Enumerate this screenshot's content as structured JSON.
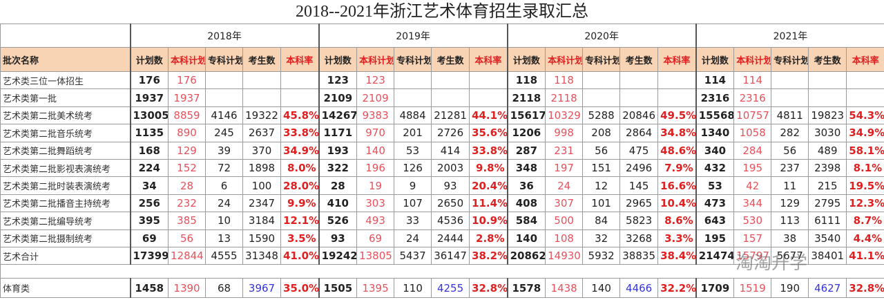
{
  "title": "2018--2021年浙江艺术体育招生录取汇总",
  "years": [
    "2018年",
    "2019年",
    "2020年",
    "2021年"
  ],
  "row_header": "批次名称",
  "columns": [
    "计划数",
    "本科计划",
    "专科计划",
    "考生数",
    "本科率"
  ],
  "rows": [
    {
      "name": "艺术类三位一体招生",
      "cells": [
        [
          176,
          176
        ],
        [
          123,
          123
        ],
        [
          118,
          118
        ],
        [
          114,
          114
        ]
      ]
    },
    {
      "name": "艺术类第一批",
      "cells": [
        [
          1937,
          1937
        ],
        [
          2109,
          2109
        ],
        [
          2118,
          2118
        ],
        [
          2316,
          2316
        ]
      ]
    },
    {
      "name": "艺术类第二批美术统考",
      "cells": [
        [
          13005,
          8859,
          4146,
          19322,
          "45.8%"
        ],
        [
          14267,
          9383,
          4884,
          21281,
          "44.1%"
        ],
        [
          15617,
          10329,
          5288,
          20846,
          "49.5%"
        ],
        [
          15568,
          10757,
          4811,
          19823,
          "54.3%"
        ]
      ]
    },
    {
      "name": "艺术类第二批音乐统考",
      "cells": [
        [
          1135,
          890,
          245,
          2637,
          "33.8%"
        ],
        [
          1171,
          970,
          201,
          2726,
          "35.6%"
        ],
        [
          1206,
          998,
          208,
          2864,
          "34.8%"
        ],
        [
          1340,
          1058,
          282,
          3030,
          "34.9%"
        ]
      ]
    },
    {
      "name": "艺术类第二批舞蹈统考",
      "cells": [
        [
          168,
          129,
          39,
          370,
          "34.9%"
        ],
        [
          193,
          140,
          53,
          414,
          "33.8%"
        ],
        [
          287,
          231,
          56,
          475,
          "48.6%"
        ],
        [
          340,
          284,
          56,
          489,
          "58.1%"
        ]
      ]
    },
    {
      "name": "艺术类第二批影视表演统考",
      "cells": [
        [
          224,
          152,
          72,
          1898,
          "8.0%"
        ],
        [
          322,
          196,
          126,
          2003,
          "9.8%"
        ],
        [
          348,
          197,
          151,
          2496,
          "7.9%"
        ],
        [
          432,
          195,
          237,
          2398,
          "8.1%"
        ]
      ]
    },
    {
      "name": "艺术类第二批时装表演统考",
      "cells": [
        [
          34,
          28,
          6,
          100,
          "28.0%"
        ],
        [
          28,
          19,
          9,
          93,
          "20.4%"
        ],
        [
          36,
          24,
          12,
          145,
          "16.6%"
        ],
        [
          53,
          42,
          11,
          215,
          "19.5%"
        ]
      ]
    },
    {
      "name": "艺术类第二批播音主持统考",
      "cells": [
        [
          256,
          232,
          24,
          2347,
          "9.9%"
        ],
        [
          410,
          303,
          107,
          2650,
          "11.4%"
        ],
        [
          408,
          307,
          101,
          2965,
          "10.4%"
        ],
        [
          473,
          344,
          129,
          2795,
          "12.3%"
        ]
      ]
    },
    {
      "name": "艺术类第二批编导统考",
      "cells": [
        [
          395,
          385,
          10,
          3184,
          "12.1%"
        ],
        [
          526,
          493,
          33,
          4536,
          "10.9%"
        ],
        [
          584,
          500,
          84,
          5823,
          "8.6%"
        ],
        [
          643,
          530,
          113,
          6111,
          "8.7%"
        ]
      ]
    },
    {
      "name": "艺术类第二批摄制统考",
      "cells": [
        [
          69,
          56,
          13,
          1590,
          "3.5%"
        ],
        [
          93,
          69,
          24,
          2444,
          "2.8%"
        ],
        [
          140,
          108,
          32,
          3268,
          "3.3%"
        ],
        [
          195,
          157,
          38,
          3540,
          "4.4%"
        ]
      ]
    },
    {
      "name": "艺术合计",
      "cells": [
        [
          17399,
          12844,
          4555,
          31348,
          "41.0%"
        ],
        [
          19242,
          13805,
          5437,
          36147,
          "38.2%"
        ],
        [
          20862,
          14930,
          5932,
          38835,
          "38.4%"
        ],
        [
          21474,
          15797,
          5677,
          38401,
          "41.1%"
        ]
      ]
    }
  ],
  "sport": {
    "name": "体育类",
    "cells": [
      [
        1458,
        1390,
        68,
        3967,
        "35.0%"
      ],
      [
        1505,
        1395,
        110,
        4255,
        "32.8%"
      ],
      [
        1578,
        1438,
        140,
        4466,
        "32.2%"
      ],
      [
        1709,
        1519,
        190,
        4627,
        "32.8%"
      ]
    ]
  },
  "watermark": "淘淘升学"
}
